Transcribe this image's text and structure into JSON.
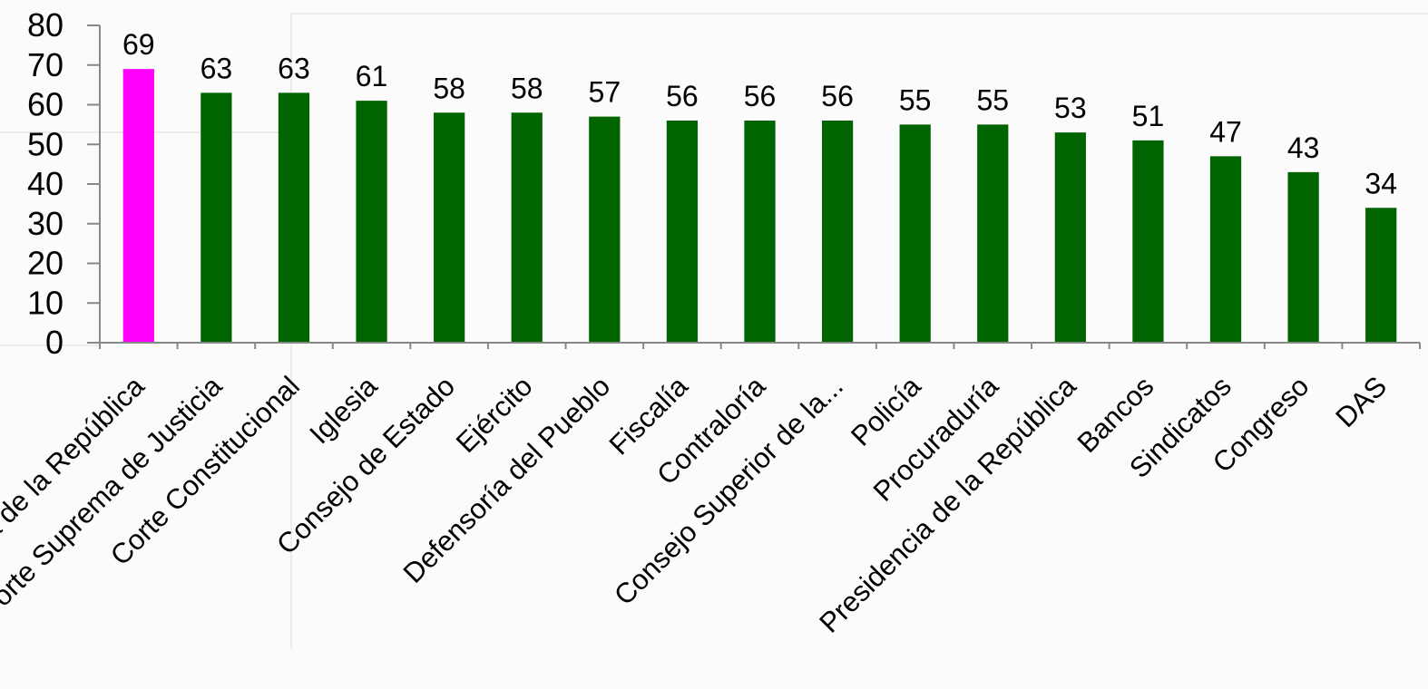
{
  "chart_data": {
    "type": "bar",
    "title": "",
    "xlabel": "",
    "ylabel": "",
    "ylim": [
      0,
      80
    ],
    "yticks": [
      0,
      10,
      20,
      30,
      40,
      50,
      60,
      70,
      80
    ],
    "grid": false,
    "categories": [
      "Procuraduría de la República",
      "Corte Suprema de Justicia",
      "Corte Constitucional",
      "Iglesia",
      "Consejo de Estado",
      "Ejército",
      "Defensoría del Pueblo",
      "Fiscalía",
      "Contraloría",
      "Consejo Superior de la...",
      "Policía",
      "Procuraduría",
      "Presidencia de la República",
      "Bancos",
      "Sindicatos",
      "Congreso",
      "DAS"
    ],
    "values": [
      69,
      63,
      63,
      61,
      58,
      58,
      57,
      56,
      56,
      56,
      55,
      55,
      53,
      51,
      47,
      43,
      34
    ],
    "highlight_index": 0,
    "colors": {
      "highlight": "#ff00ff",
      "bar": "#006400",
      "axis": "#888888"
    }
  }
}
